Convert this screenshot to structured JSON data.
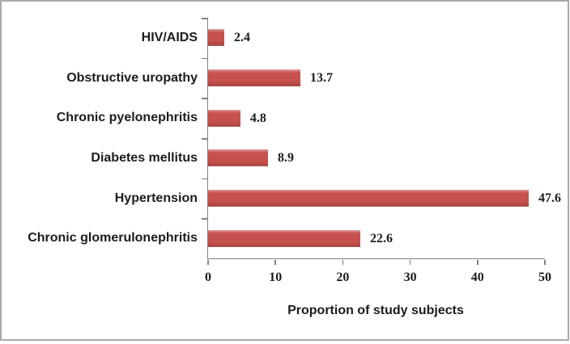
{
  "chart_data": {
    "type": "bar",
    "orientation": "horizontal",
    "title": "",
    "categories": [
      "HIV/AIDS",
      "Obstructive uropathy",
      "Chronic pyelonephritis",
      "Diabetes mellitus",
      "Hypertension",
      "Chronic glomerulonephritis"
    ],
    "values": [
      2.4,
      13.7,
      4.8,
      8.9,
      47.6,
      22.6
    ],
    "data_labels": [
      "2.4",
      "13.7",
      "4.8",
      "8.9",
      "47.6",
      "22.6"
    ],
    "xlabel": "Proportion of study subjects",
    "ylabel": "",
    "xlim": [
      0,
      50
    ],
    "xticks": [
      0,
      10,
      20,
      30,
      40,
      50
    ],
    "grid": false,
    "legend": false,
    "colors": {
      "bar": "#c5504d",
      "bar_highlight": "#d9827f",
      "bar_shadow": "#ad4340",
      "axis": "#808080",
      "text": "#1c1c1c",
      "frame_border": "#a9a9a9",
      "background": "#ffffff"
    }
  }
}
